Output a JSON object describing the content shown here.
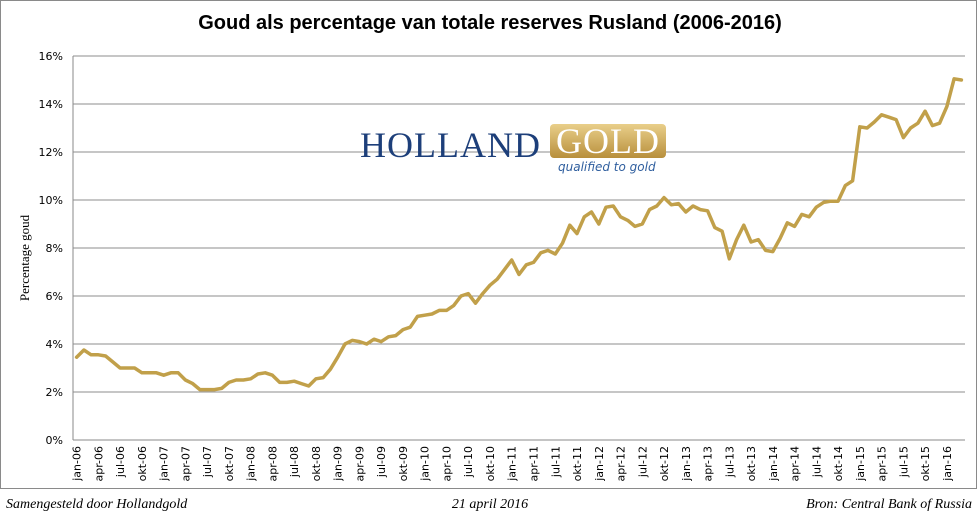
{
  "chart_data": {
    "type": "line",
    "title": "Goud als percentage van totale reserves Rusland (2006-2016)",
    "xlabel": "",
    "ylabel": "Percentage goud",
    "ylim": [
      0,
      16
    ],
    "yticks": [
      "0%",
      "2%",
      "4%",
      "6%",
      "8%",
      "10%",
      "12%",
      "14%",
      "16%"
    ],
    "grid": true,
    "line_color": "#c1a04a",
    "start": "jan-06",
    "xtick_labels": [
      "jan-06",
      "apr-06",
      "jul-06",
      "okt-06",
      "jan-07",
      "apr-07",
      "jul-07",
      "okt-07",
      "jan-08",
      "apr-08",
      "jul-08",
      "okt-08",
      "jan-09",
      "apr-09",
      "jul-09",
      "okt-09",
      "jan-10",
      "apr-10",
      "jul-10",
      "okt-10",
      "jan-11",
      "apr-11",
      "jul-11",
      "okt-11",
      "jan-12",
      "apr-12",
      "jul-12",
      "okt-12",
      "jan-13",
      "apr-13",
      "jul-13",
      "okt-13",
      "jan-14",
      "apr-14",
      "jul-14",
      "okt-14",
      "jan-15",
      "apr-15",
      "jul-15",
      "okt-15",
      "jan-16"
    ],
    "series": [
      {
        "name": "Percentage goud",
        "values": [
          3.45,
          3.75,
          3.55,
          3.55,
          3.5,
          3.25,
          3.0,
          3.0,
          3.0,
          2.8,
          2.8,
          2.8,
          2.7,
          2.8,
          2.8,
          2.5,
          2.35,
          2.1,
          2.1,
          2.1,
          2.15,
          2.4,
          2.5,
          2.5,
          2.55,
          2.75,
          2.8,
          2.7,
          2.4,
          2.4,
          2.45,
          2.35,
          2.25,
          2.55,
          2.6,
          2.95,
          3.45,
          4.0,
          4.15,
          4.1,
          4.0,
          4.2,
          4.1,
          4.3,
          4.35,
          4.6,
          4.7,
          5.15,
          5.2,
          5.25,
          5.4,
          5.4,
          5.6,
          6.0,
          6.1,
          5.7,
          6.1,
          6.45,
          6.7,
          7.1,
          7.5,
          6.9,
          7.3,
          7.4,
          7.8,
          7.9,
          7.75,
          8.2,
          8.95,
          8.6,
          9.3,
          9.5,
          9.0,
          9.7,
          9.75,
          9.3,
          9.15,
          8.9,
          9.0,
          9.6,
          9.75,
          10.1,
          9.8,
          9.85,
          9.5,
          9.75,
          9.6,
          9.55,
          8.85,
          8.7,
          7.55,
          8.35,
          8.95,
          8.25,
          8.35,
          7.9,
          7.85,
          8.4,
          9.05,
          8.9,
          9.4,
          9.3,
          9.7,
          9.9,
          9.95,
          9.95,
          10.6,
          10.8,
          13.05,
          13.0,
          13.25,
          13.55,
          13.45,
          13.35,
          12.6,
          13.0,
          13.2,
          13.7,
          13.1,
          13.2,
          13.9,
          15.05,
          15.0
        ]
      }
    ]
  },
  "logo": {
    "word1": "HOLLAND",
    "word2": "GOLD",
    "tagline": "qualified to gold"
  },
  "footer": {
    "left": "Samengesteld door Hollandgold",
    "center": "21 april 2016",
    "right": "Bron: Central Bank of Russia"
  }
}
